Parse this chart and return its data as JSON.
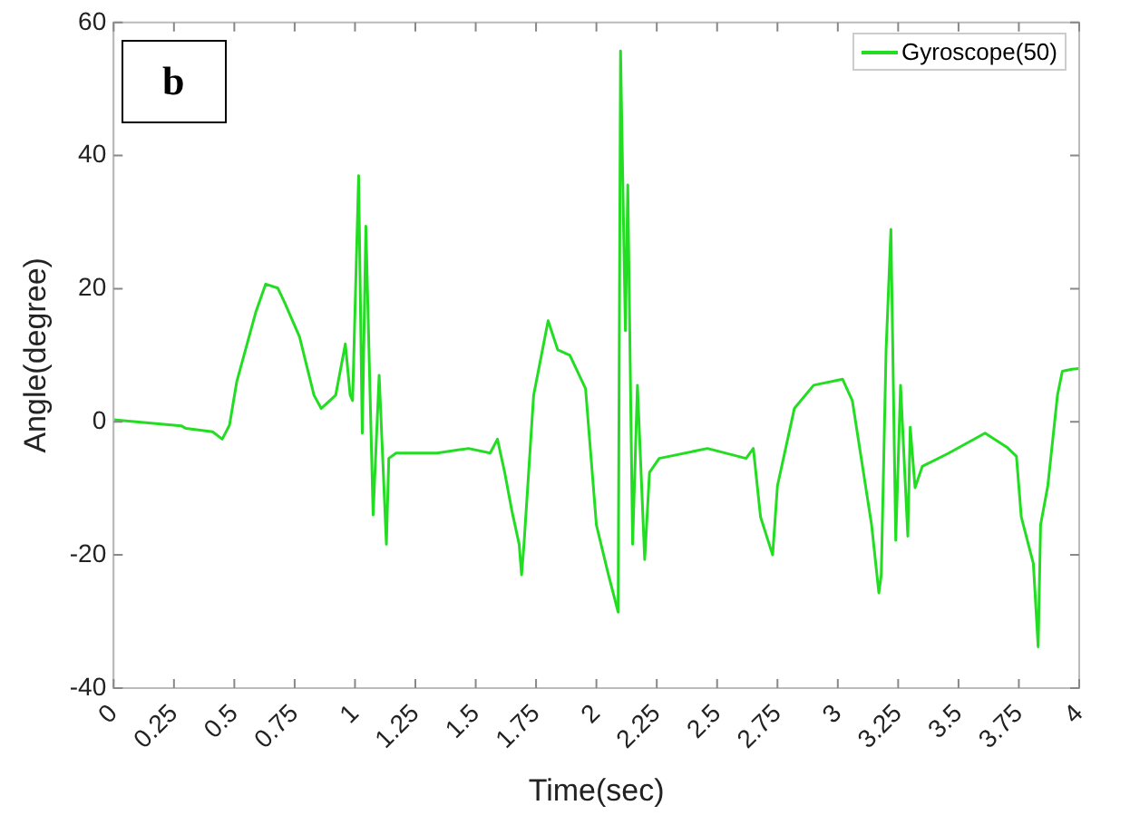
{
  "chart_data": {
    "type": "line",
    "xlabel": "Time(sec)",
    "ylabel": "Angle(degree)",
    "annotations": [
      "b"
    ],
    "xlim": [
      0,
      4
    ],
    "xticks": [
      0,
      0.25,
      0.5,
      0.75,
      1,
      1.25,
      1.5,
      1.75,
      2,
      2.25,
      2.5,
      2.75,
      3,
      3.25,
      3.5,
      3.75,
      4
    ],
    "ylim": [
      -40,
      60
    ],
    "yticks": [
      -40,
      -20,
      0,
      20,
      40,
      60
    ],
    "grid": false,
    "legend": "top right",
    "marker": "none",
    "line_style": "solid",
    "series": [
      {
        "name": "Gyroscope(50)",
        "color": "#22dd22",
        "x": [
          0,
          0.28,
          0.3,
          0.41,
          0.45,
          0.47,
          0.48,
          0.51,
          0.59,
          0.63,
          0.68,
          0.71,
          0.77,
          0.83,
          0.86,
          0.92,
          0.96,
          0.98,
          0.99,
          1.015,
          1.03,
          1.045,
          1.075,
          1.1,
          1.13,
          1.14,
          1.17,
          1.34,
          1.47,
          1.56,
          1.59,
          1.62,
          1.65,
          1.68,
          1.69,
          1.7,
          1.74,
          1.8,
          1.84,
          1.89,
          1.955,
          2,
          2.05,
          2.09,
          2.1,
          2.12,
          2.13,
          2.15,
          2.17,
          2.2,
          2.22,
          2.26,
          2.46,
          2.62,
          2.65,
          2.68,
          2.73,
          2.75,
          2.82,
          2.9,
          3.02,
          3.06,
          3.14,
          3.17,
          3.18,
          3.2,
          3.22,
          3.24,
          3.26,
          3.29,
          3.3,
          3.32,
          3.35,
          3.46,
          3.61,
          3.7,
          3.74,
          3.76,
          3.81,
          3.83,
          3.84,
          3.87,
          3.91,
          3.93,
          3.97,
          4
        ],
        "values": [
          0.3,
          -0.6,
          -1,
          -1.5,
          -2.6,
          -1.2,
          -0.5,
          6,
          16.6,
          20.7,
          20.1,
          17.8,
          12.8,
          4,
          2,
          4,
          11.7,
          4,
          3.2,
          37,
          -1.7,
          29.4,
          -14,
          7,
          -18.4,
          -5.5,
          -4.7,
          -4.7,
          -4,
          -4.7,
          -2.6,
          -7.6,
          -13.4,
          -18.4,
          -23,
          -18.4,
          4,
          15.2,
          10.8,
          10,
          5,
          -15.5,
          -23,
          -28.6,
          55.7,
          13.7,
          35.6,
          -18.4,
          5.5,
          -20.7,
          -7.6,
          -5.5,
          -4,
          -5.5,
          -4,
          -14.3,
          -20,
          -9.6,
          2,
          5.5,
          6.4,
          3.2,
          -15.5,
          -25.7,
          -23,
          10.8,
          28.9,
          -17.8,
          5.5,
          -17.2,
          -0.8,
          -9.9,
          -6.7,
          -4.7,
          -1.7,
          -3.8,
          -5.2,
          -14.3,
          -21.3,
          -33.8,
          -15.5,
          -9.6,
          4,
          7.6,
          7.9,
          8
        ]
      }
    ]
  }
}
